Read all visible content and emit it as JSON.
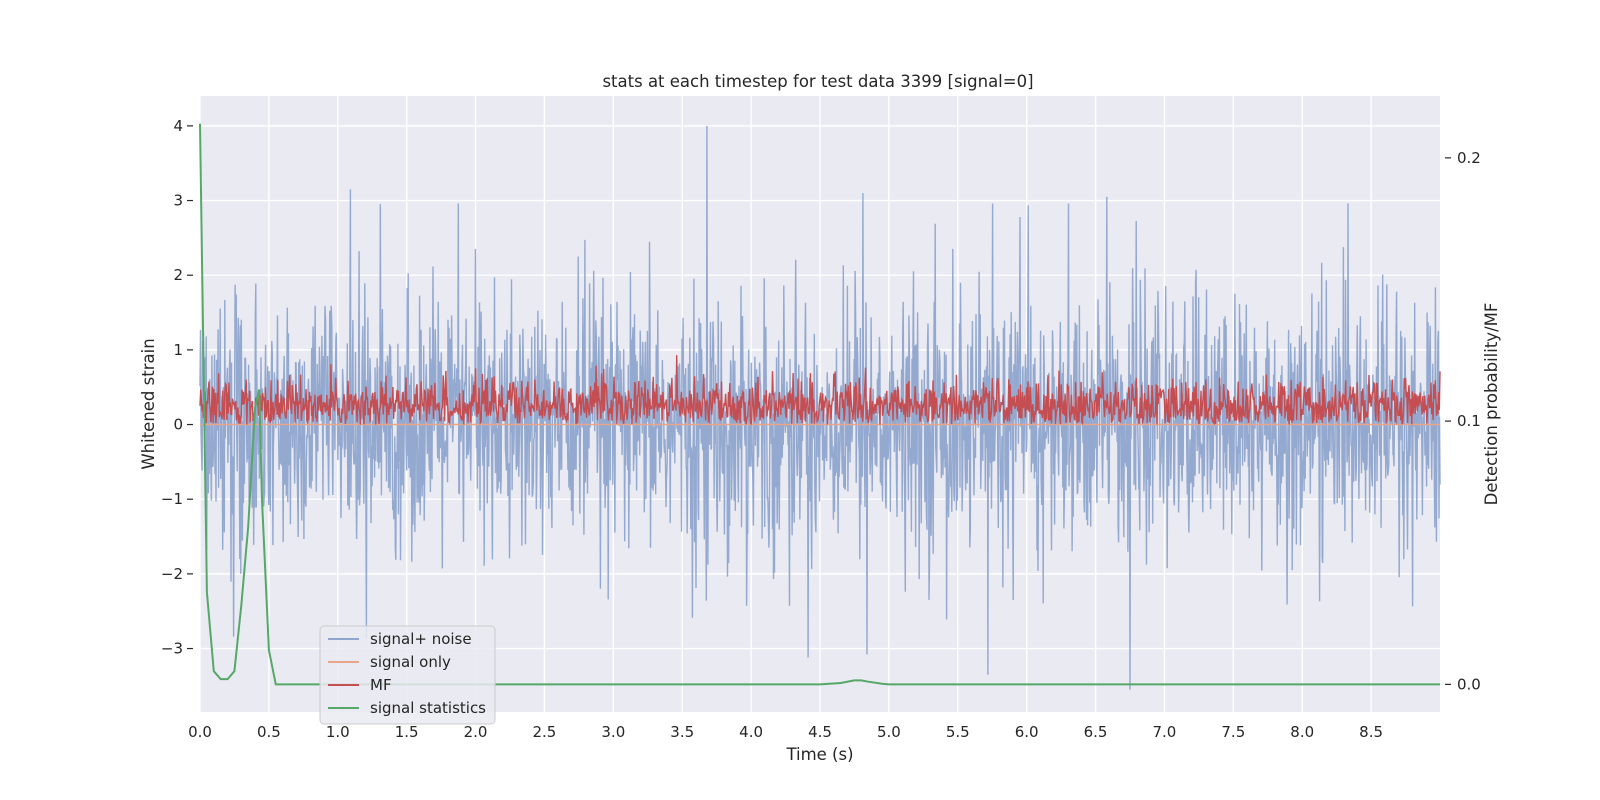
{
  "chart_data": {
    "type": "line",
    "title": "stats at each timestep for test data 3399 [signal=0]",
    "xlabel": "Time (s)",
    "ylabel": "Whitened strain",
    "ylabel_right": "Detection probability/MF",
    "xlim": [
      0.0,
      9.0
    ],
    "ylim": [
      -3.85,
      4.4
    ],
    "ylim_right": [
      -0.0105,
      0.2235
    ],
    "x_ticks": [
      0.0,
      0.5,
      1.0,
      1.5,
      2.0,
      2.5,
      3.0,
      3.5,
      4.0,
      4.5,
      5.0,
      5.5,
      6.0,
      6.5,
      7.0,
      7.5,
      8.0,
      8.5
    ],
    "x_tick_labels": [
      "0.0",
      "0.5",
      "1.0",
      "1.5",
      "2.0",
      "2.5",
      "3.0",
      "3.5",
      "4.0",
      "4.5",
      "5.0",
      "5.5",
      "6.0",
      "6.5",
      "7.0",
      "7.5",
      "8.0",
      "8.5"
    ],
    "y_ticks": [
      -3,
      -2,
      -1,
      0,
      1,
      2,
      3,
      4
    ],
    "y_tick_labels": [
      "−3",
      "−2",
      "−1",
      "0",
      "1",
      "2",
      "3",
      "4"
    ],
    "y_ticks_right": [
      0.0,
      0.1,
      0.2
    ],
    "y_tick_labels_right": [
      "0.0",
      "0.1",
      "0.2"
    ],
    "grid": true,
    "legend_position": "lower-left",
    "legend": [
      "signal+ noise",
      "signal only",
      "MF",
      "signal statistics"
    ],
    "series": [
      {
        "name": "signal+ noise",
        "axis": "left",
        "color": "#8fa5cd",
        "description_note": "dense whitened strain noise, roughly symmetric",
        "noise_amplitude_envelope": 1.6,
        "notable_peaks": [
          {
            "x": 3.68,
            "y": 4.0
          },
          {
            "x": 6.75,
            "y": -3.55
          },
          {
            "x": 5.72,
            "y": -3.35
          },
          {
            "x": 1.09,
            "y": 3.15
          },
          {
            "x": 4.81,
            "y": 3.1
          },
          {
            "x": 6.58,
            "y": 3.05
          }
        ]
      },
      {
        "name": "signal only",
        "axis": "left",
        "color": "#e8a58a",
        "x": [
          0.0,
          9.0
        ],
        "y": [
          0.0,
          0.0
        ]
      },
      {
        "name": "MF",
        "axis": "left",
        "color": "#c44e52",
        "baseline": 0.0,
        "typical_level": 0.35,
        "max": 1.0
      },
      {
        "name": "signal statistics",
        "axis": "right",
        "color": "#55a868",
        "x": [
          0.0,
          0.05,
          0.1,
          0.15,
          0.2,
          0.25,
          0.3,
          0.35,
          0.4,
          0.43,
          0.45,
          0.5,
          0.55,
          0.6,
          1.0,
          2.0,
          3.0,
          4.0,
          4.5,
          4.65,
          4.75,
          4.8,
          4.85,
          4.95,
          5.0,
          6.0,
          7.0,
          8.0,
          9.0
        ],
        "y": [
          0.213,
          0.035,
          0.005,
          0.002,
          0.002,
          0.005,
          0.03,
          0.06,
          0.105,
          0.112,
          0.07,
          0.013,
          0.0,
          0.0,
          0.0,
          0.0,
          0.0,
          0.0,
          0.0,
          0.0005,
          0.0015,
          0.0015,
          0.001,
          0.0002,
          0.0,
          0.0,
          0.0,
          0.0,
          0.0
        ]
      }
    ]
  }
}
